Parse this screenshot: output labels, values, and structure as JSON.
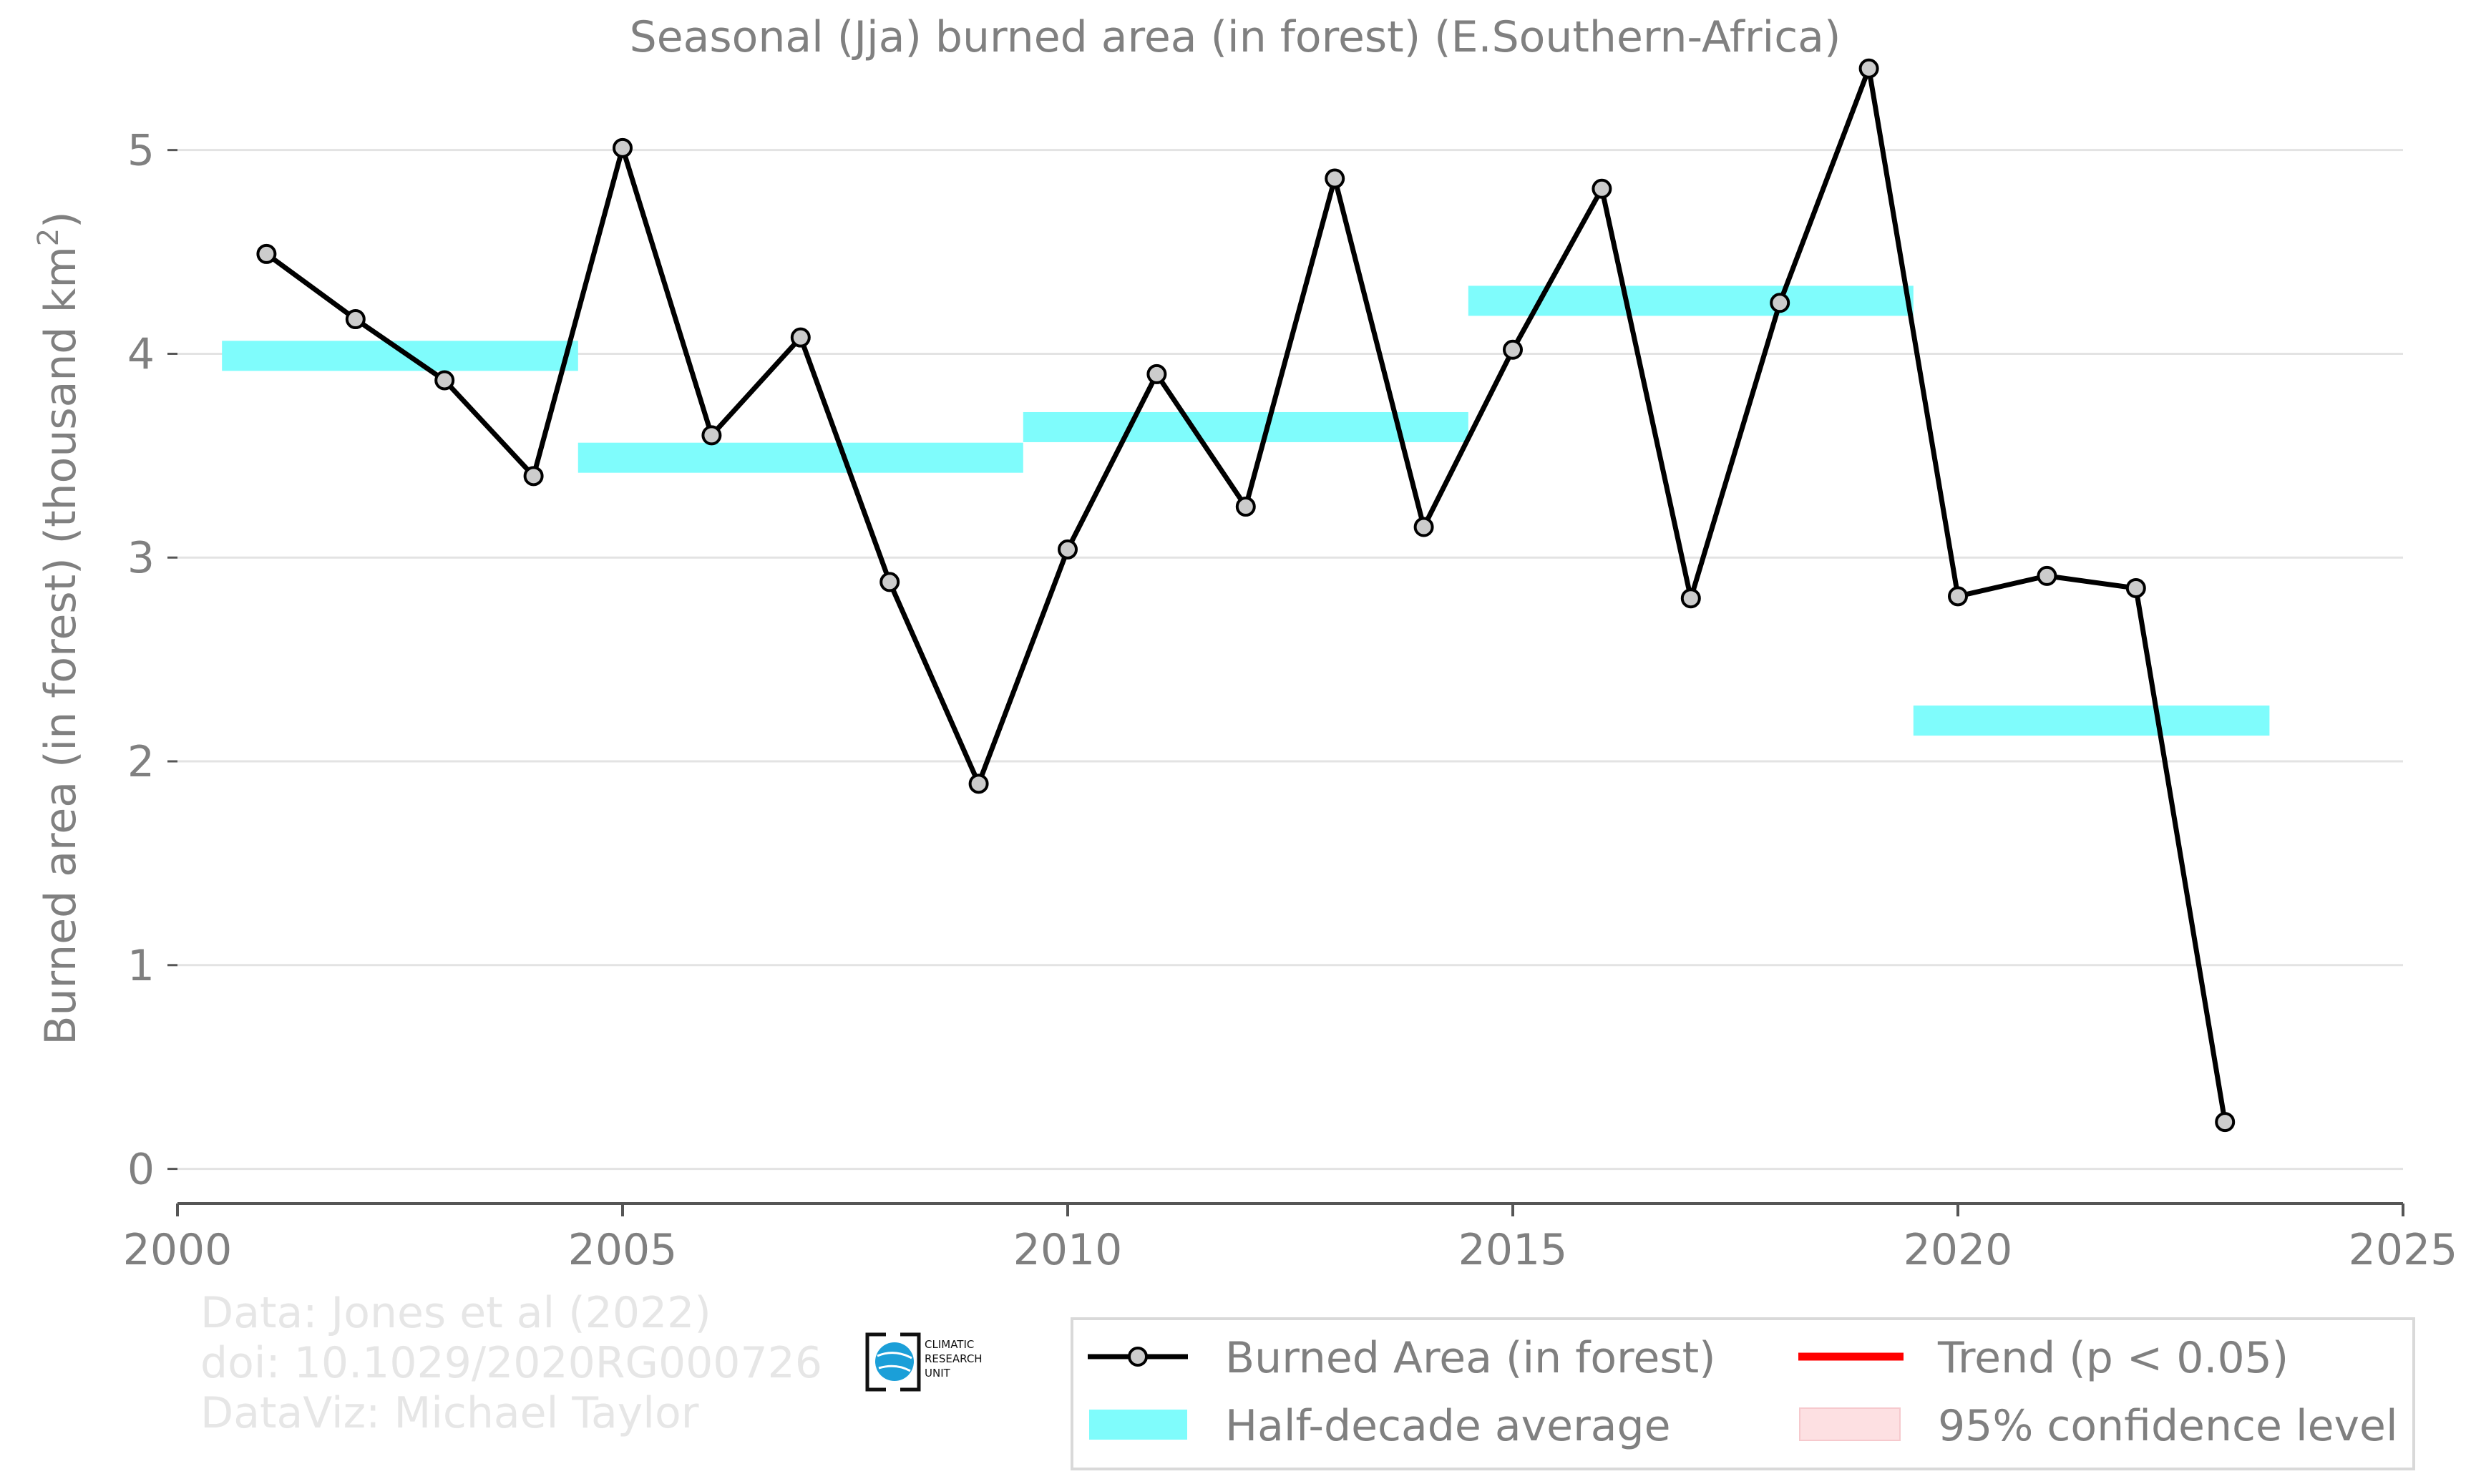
{
  "chart_data": {
    "type": "line",
    "title": "Seasonal (Jja) burned area (in forest) (E.Southern-Africa)",
    "ylabel_main": "Burned area (in forest) (thousand km",
    "ylabel_sup": "2",
    "ylabel_close": ")",
    "xlabel": "",
    "xlim": [
      2000,
      2025
    ],
    "ylim": [
      -0.17,
      5.35
    ],
    "x_ticks": [
      2000,
      2005,
      2010,
      2015,
      2020,
      2025
    ],
    "y_ticks": [
      0,
      1,
      2,
      3,
      4,
      5
    ],
    "grid": true,
    "series": [
      {
        "name": "Burned Area (in forest)",
        "color": "#000000",
        "marker_fill": "#cccccc",
        "x": [
          2001,
          2002,
          2003,
          2004,
          2005,
          2006,
          2007,
          2008,
          2009,
          2010,
          2011,
          2012,
          2013,
          2014,
          2015,
          2016,
          2017,
          2018,
          2019,
          2020,
          2021,
          2022,
          2023
        ],
        "y": [
          4.49,
          4.17,
          3.87,
          3.4,
          5.01,
          3.6,
          4.08,
          2.88,
          1.89,
          3.04,
          3.9,
          3.25,
          4.86,
          3.15,
          4.02,
          4.81,
          2.8,
          4.25,
          5.4,
          2.81,
          2.91,
          2.85,
          0.23
        ]
      }
    ],
    "half_decade_average": {
      "name": "Half-decade average",
      "color": "#7ffcfc",
      "segments": [
        {
          "x0": 2000.5,
          "x1": 2004.5,
          "y": 3.99
        },
        {
          "x0": 2004.5,
          "x1": 2009.5,
          "y": 3.49
        },
        {
          "x0": 2009.5,
          "x1": 2014.5,
          "y": 3.64
        },
        {
          "x0": 2014.5,
          "x1": 2019.5,
          "y": 4.26
        },
        {
          "x0": 2019.5,
          "x1": 2023.5,
          "y": 2.2
        }
      ]
    },
    "legend": {
      "placement": "bottom-right",
      "entries": [
        {
          "label": "Burned Area (in forest)",
          "kind": "line-marker",
          "color": "#000000"
        },
        {
          "label": "Trend (p < 0.05)",
          "kind": "line",
          "color": "#ff0000"
        },
        {
          "label": "Half-decade average",
          "kind": "band",
          "color": "#7ffcfc"
        },
        {
          "label": "95% confidence level",
          "kind": "band",
          "color": "#fde0e2"
        }
      ]
    },
    "credits": [
      "Data: Jones et al (2022)",
      "doi: 10.1029/2020RG000726",
      "DataViz: Michael Taylor"
    ],
    "logo_text": [
      "CLIMATIC",
      "RESEARCH",
      "UNIT"
    ],
    "colors": {
      "text": "#808080",
      "grid": "#e3e3e3",
      "axis": "#555555",
      "credit": "#e6e6e6",
      "logo_blue": "#1b9fd8"
    }
  }
}
